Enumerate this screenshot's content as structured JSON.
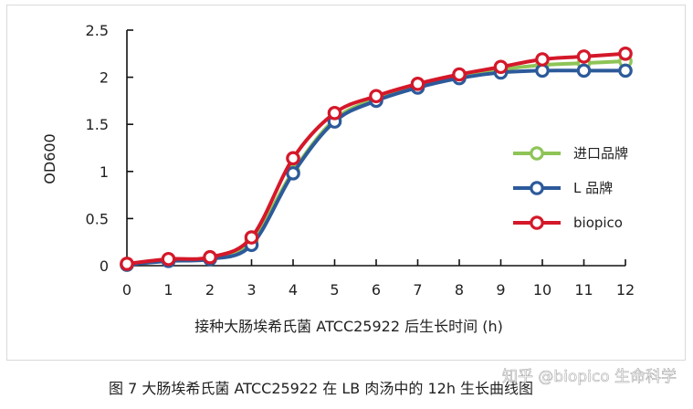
{
  "chart_data": {
    "type": "line",
    "xlabel": "接种大肠埃希氏菌 ATCC25922 后生长时间 (h)",
    "ylabel": "OD600",
    "x": [
      0,
      1,
      2,
      3,
      4,
      5,
      6,
      7,
      8,
      9,
      10,
      11,
      12
    ],
    "xlim": [
      0,
      12
    ],
    "ylim": [
      0,
      2.5
    ],
    "yticks": [
      "0",
      "0.5",
      "1",
      "1.5",
      "2",
      "2.5"
    ],
    "xticks": [
      "0",
      "1",
      "2",
      "3",
      "4",
      "5",
      "6",
      "7",
      "8",
      "9",
      "10",
      "11",
      "12"
    ],
    "grid": false,
    "legend_position": "right",
    "series": [
      {
        "name": "进口品牌",
        "color": "#8ec457",
        "values": [
          0.01,
          0.06,
          0.08,
          0.27,
          1.0,
          1.55,
          1.77,
          1.9,
          2.0,
          2.08,
          2.13,
          2.15,
          2.17
        ]
      },
      {
        "name": "L 品牌",
        "color": "#2c5a9a",
        "values": [
          0.01,
          0.05,
          0.07,
          0.22,
          0.98,
          1.53,
          1.75,
          1.89,
          1.99,
          2.05,
          2.07,
          2.07,
          2.07
        ]
      },
      {
        "name": "biopico",
        "color": "#d4182a",
        "values": [
          0.02,
          0.07,
          0.09,
          0.3,
          1.14,
          1.62,
          1.8,
          1.93,
          2.03,
          2.11,
          2.19,
          2.22,
          2.25
        ]
      }
    ]
  },
  "caption": "图 7  大肠埃希氏菌 ATCC25922 在 LB 肉汤中的 12h 生长曲线图",
  "watermark": "知乎 @biopico 生命科学"
}
